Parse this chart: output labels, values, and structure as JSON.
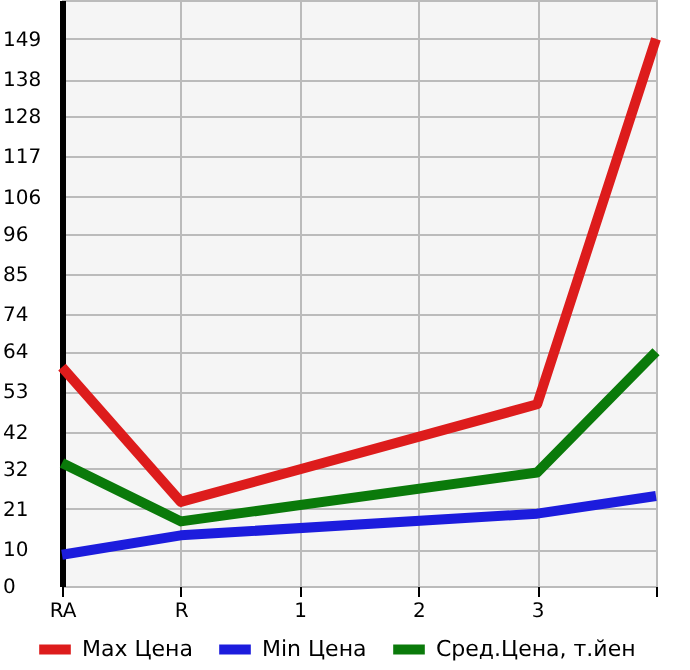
{
  "chart_data": {
    "type": "line",
    "categories": [
      "RA",
      "R",
      "1",
      "2",
      "3",
      null
    ],
    "series": [
      {
        "name": "Max Цена",
        "color": "#dd1c1c",
        "values": [
          59.6,
          22.9,
          null,
          null,
          49.5,
          149
        ]
      },
      {
        "name": "Min Цена",
        "color": "#1c1cdd",
        "values": [
          8.5,
          13.8,
          null,
          null,
          19.7,
          24.5
        ]
      },
      {
        "name": "Сред.Цена, т.йен",
        "color": "#0a7a0a",
        "values": [
          33.5,
          17.6,
          null,
          null,
          30.9,
          63.8
        ]
      }
    ],
    "ylim": [
      0,
      159.6
    ],
    "yticks": [
      0,
      10,
      21,
      32,
      42,
      53,
      64,
      74,
      85,
      96,
      106,
      117,
      128,
      138,
      149
    ],
    "grid": true,
    "legend": "bottom",
    "marker": "none",
    "line_style": "solid"
  }
}
